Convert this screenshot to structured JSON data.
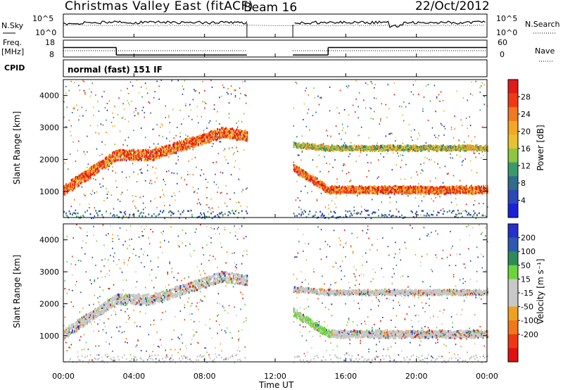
{
  "header": {
    "station": "Christmas Valley East (fitACF)",
    "beam": "Beam 16",
    "date": "22/Oct/2012"
  },
  "sky_panel": {
    "left_label": "N.Sky",
    "left_ticks": [
      "10^5",
      "10^0"
    ],
    "right_ticks": [
      "10^5",
      "10^0"
    ],
    "right_label": "N.Search"
  },
  "freq_panel": {
    "left_label_1": "Freq.",
    "left_label_2": "[MHz]",
    "left_ticks": [
      "18",
      "8"
    ],
    "right_ticks": [
      "60",
      "0"
    ],
    "right_label": "Nave"
  },
  "cpid": {
    "label": "CPID",
    "mode": "normal (fast) 151 IF"
  },
  "x_axis": {
    "ticks": [
      "00:00",
      "04:00",
      "08:00",
      "12:00",
      "16:00",
      "20:00",
      "00:00"
    ],
    "label": "Time UT"
  },
  "colors": {
    "power_scale": [
      "#1a22d8",
      "#2c47b8",
      "#2f6d8a",
      "#3b9a6c",
      "#8dc63f",
      "#e6c230",
      "#f5a623",
      "#f07a1f",
      "#ef3b14",
      "#e21a1a"
    ],
    "velocity_scale": [
      "#2830c8",
      "#2c5ab0",
      "#2f8a5a",
      "#6cd43a",
      "#c8c8c8",
      "#c8c8c8",
      "#f0a020",
      "#f07818",
      "#ee3814",
      "#e01010"
    ]
  },
  "chart_data": [
    {
      "type": "heatmap",
      "name": "power",
      "ylabel": "Slant Range [km]",
      "y_ticks": [
        "1000",
        "2000",
        "3000",
        "4000"
      ],
      "ylim": [
        180,
        4500
      ],
      "xlim": [
        0,
        24
      ],
      "colorbar": {
        "label": "Power [dB]",
        "ticks": [
          "4",
          "8",
          "12",
          "16",
          "20",
          "24",
          "28"
        ]
      },
      "data_gaps": [
        [
          10.4,
          13.0
        ]
      ],
      "bands": [
        {
          "t": [
            0,
            3,
            5,
            9,
            10.4
          ],
          "range": [
            1100,
            2200,
            2200,
            2900,
            2800
          ],
          "level": "high"
        },
        {
          "t": [
            13,
            15,
            19,
            24
          ],
          "range": [
            1800,
            1100,
            1100,
            1100
          ],
          "level": "high"
        },
        {
          "t": [
            13,
            15,
            24
          ],
          "range": [
            2500,
            2400,
            2400
          ],
          "level": "medium"
        }
      ]
    },
    {
      "type": "heatmap",
      "name": "velocity",
      "ylabel": "Slant Range [km]",
      "y_ticks": [
        "1000",
        "2000",
        "3000",
        "4000"
      ],
      "ylim": [
        180,
        4500
      ],
      "xlim": [
        0,
        24
      ],
      "colorbar": {
        "label": "Velocity [m s⁻¹]",
        "ticks": [
          "200",
          "100",
          "50",
          "15",
          "-15",
          "-50",
          "-100",
          "-200"
        ]
      },
      "data_gaps": [
        [
          10.4,
          13.0
        ]
      ]
    }
  ]
}
